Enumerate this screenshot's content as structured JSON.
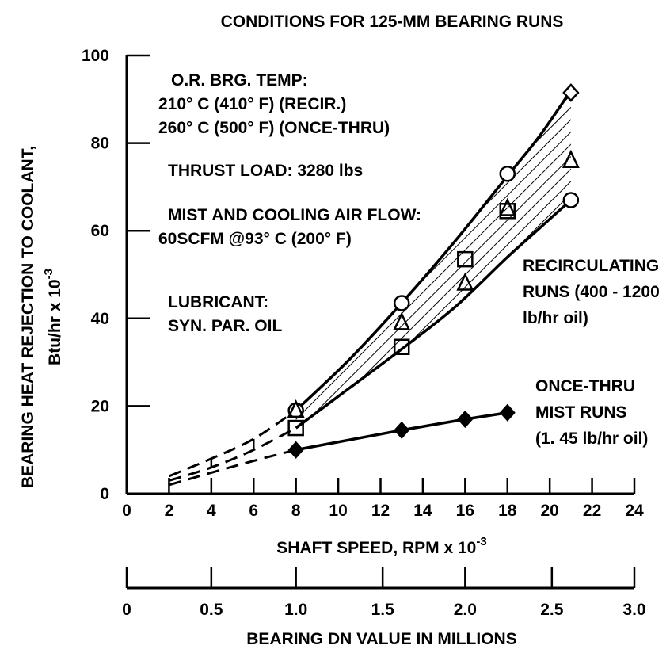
{
  "chart_data": {
    "type": "line",
    "title": "CONDITIONS FOR 125-MM BEARING RUNS",
    "xlabel": "SHAFT SPEED, RPM x 10",
    "xlabel_exp": "-3",
    "ylabel_line1": "BEARING HEAT REJECTION TO COOLANT,",
    "ylabel_line2": "Btu/hr x 10",
    "ylabel_exp": "-3",
    "xlim": [
      0,
      24
    ],
    "ylim": [
      0,
      100
    ],
    "x_ticks": [
      "0",
      "2",
      "4",
      "6",
      "8",
      "10",
      "12",
      "14",
      "16",
      "18",
      "20",
      "22",
      "24"
    ],
    "y_ticks": [
      "0",
      "20",
      "40",
      "60",
      "80",
      "100"
    ],
    "secondary_axis": {
      "label": "BEARING DN VALUE IN MILLIONS",
      "ticks": [
        {
          "label": "0",
          "rpm": 0
        },
        {
          "label": "0.5",
          "rpm": 4
        },
        {
          "label": "1.0",
          "rpm": 8
        },
        {
          "label": "1.5",
          "rpm": 12.1
        },
        {
          "label": "2.0",
          "rpm": 16
        },
        {
          "label": "2.5",
          "rpm": 20.1
        },
        {
          "label": "3.0",
          "rpm": 24
        }
      ]
    },
    "annotations": {
      "conditions": [
        "O.R. BRG. TEMP:",
        "210° C (410° F) (RECIR.)",
        "260° C (500° F) (ONCE-THRU)",
        "THRUST LOAD: 3280 lbs",
        "MIST AND COOLING AIR FLOW:",
        "60SCFM @93° C (200° F)",
        "LUBRICANT:",
        "SYN. PAR. OIL"
      ],
      "recirculating": [
        "RECIRCULATING",
        "RUNS (400 - 1200",
        "lb/hr oil)"
      ],
      "once_thru": [
        "ONCE-THRU",
        "MIST RUNS",
        "(1. 45 lb/hr oil)"
      ]
    },
    "series": [
      {
        "name": "circle",
        "marker": "circle",
        "points": [
          [
            8,
            19
          ],
          [
            13,
            43.5
          ],
          [
            18,
            73
          ],
          [
            21,
            67
          ]
        ]
      },
      {
        "name": "triangle",
        "marker": "triangle",
        "points": [
          [
            8,
            19
          ],
          [
            13,
            39
          ],
          [
            16,
            48
          ],
          [
            18,
            65
          ],
          [
            21,
            76
          ]
        ]
      },
      {
        "name": "square",
        "marker": "square",
        "points": [
          [
            8,
            15
          ],
          [
            13,
            33.5
          ],
          [
            16,
            53.5
          ],
          [
            18,
            64.5
          ]
        ]
      },
      {
        "name": "diamond",
        "marker": "diamond",
        "points": [
          [
            21,
            91.5
          ]
        ]
      },
      {
        "name": "once-thru",
        "marker": "filled-diamond",
        "points": [
          [
            8,
            10
          ],
          [
            13,
            14.5
          ],
          [
            16,
            17
          ],
          [
            18,
            18.5
          ]
        ]
      }
    ],
    "band_upper": [
      [
        8,
        19
      ],
      [
        10.5,
        30.5
      ],
      [
        13,
        43.5
      ],
      [
        15.5,
        57.5
      ],
      [
        18,
        72.5
      ],
      [
        19.5,
        81.5
      ],
      [
        21,
        92
      ]
    ],
    "band_lower": [
      [
        8,
        15
      ],
      [
        10.5,
        24
      ],
      [
        13,
        33
      ],
      [
        15.5,
        42.5
      ],
      [
        18,
        54
      ],
      [
        19.5,
        60.5
      ],
      [
        21,
        67
      ]
    ],
    "band_upper_extrap": [
      [
        2,
        4
      ],
      [
        4,
        8
      ],
      [
        6,
        12.5
      ],
      [
        8,
        19
      ]
    ],
    "band_lower_extrap": [
      [
        2,
        3
      ],
      [
        4,
        6
      ],
      [
        6,
        10
      ],
      [
        8,
        15
      ]
    ],
    "once_thru_extrap": [
      [
        2,
        2
      ],
      [
        4,
        4.8
      ],
      [
        6,
        7.5
      ],
      [
        8,
        10
      ]
    ],
    "grid": false
  }
}
